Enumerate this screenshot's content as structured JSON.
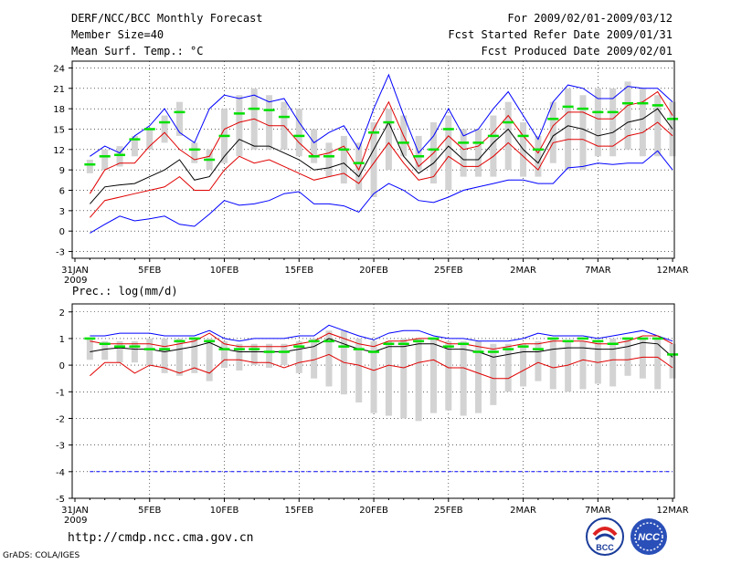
{
  "header": {
    "title": "DERF/NCC/BCC Monthly Forecast",
    "member_size": "Member Size=40",
    "variable": "Mean Surf. Temp.: °C",
    "period": "For 2009/02/01-2009/03/12",
    "started": "Fcst Started Refer Date 2009/01/31",
    "produced": "Fcst Produced Date 2009/02/01"
  },
  "footer": {
    "url": "http://cmdp.ncc.cma.gov.cn",
    "grads": "GrADS: COLA/IGES",
    "logo_bcc": "BCC",
    "logo_ncc": "NCC"
  },
  "colors": {
    "bar": "#d3d3d3",
    "median": "#00e000",
    "max": "#0000ff",
    "pctl": "#e00000",
    "mean": "#000000",
    "grid": "#000000"
  },
  "chart_data": [
    {
      "type": "line",
      "title": "",
      "ylabel": "Mean Surf. Temp.: °C",
      "ylim": [
        -4,
        25
      ],
      "yticks": [
        "-3",
        "0",
        "3",
        "6",
        "9",
        "12",
        "15",
        "18",
        "21",
        "24"
      ],
      "ytick_values": [
        -3,
        0,
        3,
        6,
        9,
        12,
        15,
        18,
        21,
        24
      ],
      "xticks": [
        "31JAN",
        "5FEB",
        "10FEB",
        "15FEB",
        "20FEB",
        "25FEB",
        "2MAR",
        "7MAR",
        "12MAR"
      ],
      "xtick_days": [
        0,
        5,
        10,
        15,
        20,
        25,
        30,
        35,
        40
      ],
      "xyear": "2009",
      "days": [
        1,
        2,
        3,
        4,
        5,
        6,
        7,
        8,
        9,
        10,
        11,
        12,
        13,
        14,
        15,
        16,
        17,
        18,
        19,
        20,
        21,
        22,
        23,
        24,
        25,
        26,
        27,
        28,
        29,
        30,
        31,
        32,
        33,
        34,
        35,
        36,
        37,
        38,
        39,
        40
      ],
      "bars": {
        "low": [
          8.5,
          9,
          9.5,
          11,
          12,
          13,
          14,
          10,
          9,
          10,
          11,
          12,
          12,
          12,
          11,
          10,
          8,
          7,
          6,
          5,
          9,
          11,
          9,
          7,
          6,
          8,
          8,
          8,
          9,
          8,
          8,
          10,
          9,
          9,
          11,
          11,
          12,
          11,
          11,
          11
        ],
        "high": [
          10.5,
          12,
          12.5,
          14,
          15,
          17,
          19,
          13,
          12,
          18,
          20,
          21,
          20,
          19,
          18,
          15,
          13,
          14,
          13,
          16,
          18,
          17,
          14,
          16,
          17,
          15,
          15,
          17,
          19,
          16,
          14,
          19,
          21,
          20,
          21,
          21,
          22,
          21,
          20,
          19
        ]
      },
      "series": [
        {
          "name": "median",
          "values": [
            9.8,
            11,
            11.2,
            13.5,
            15,
            16,
            17.5,
            12,
            10.5,
            14,
            17.3,
            18,
            17.8,
            16.8,
            14,
            11,
            11,
            12,
            10,
            14.5,
            16,
            13,
            11,
            12,
            15,
            13,
            13,
            14,
            16,
            14,
            12,
            16.5,
            18.3,
            18,
            17.5,
            17.5,
            18.8,
            18.8,
            18.5,
            16.5
          ]
        },
        {
          "name": "max",
          "values": [
            11,
            12.5,
            11.5,
            14,
            15.5,
            18,
            14.5,
            13,
            18,
            20,
            19.5,
            20,
            19,
            19.5,
            16,
            13,
            14.5,
            15.5,
            12,
            18,
            23,
            17,
            11.5,
            14,
            18,
            14,
            15,
            18,
            20.5,
            17,
            13.5,
            19,
            21.5,
            21,
            19.5,
            19.5,
            21.3,
            21,
            21,
            19
          ]
        },
        {
          "name": "upper",
          "values": [
            5.5,
            9,
            10,
            10,
            12.5,
            14.5,
            12,
            10.5,
            11,
            15,
            16,
            16.5,
            15.5,
            15.5,
            13,
            11,
            11.5,
            12.5,
            9,
            15,
            19,
            14,
            9.5,
            11.5,
            14,
            12,
            12.5,
            14.5,
            17,
            14,
            11.5,
            15.5,
            17.5,
            17.5,
            16.5,
            16.5,
            18.5,
            19,
            20.5,
            17
          ]
        },
        {
          "name": "mean",
          "values": [
            4,
            6.5,
            6.8,
            7,
            8,
            9,
            10.5,
            7.5,
            8,
            11,
            13.5,
            12.5,
            12.5,
            11.5,
            10.5,
            9,
            9.3,
            10,
            8,
            12,
            16,
            11,
            8.5,
            10,
            12.5,
            10.5,
            10.5,
            13,
            15,
            12,
            10,
            14,
            15.5,
            15,
            14,
            14.5,
            16,
            16.5,
            18,
            15
          ]
        },
        {
          "name": "lower",
          "values": [
            2,
            4.5,
            5,
            5.5,
            6,
            6.5,
            8,
            6,
            6,
            9,
            11,
            10,
            10.5,
            9.5,
            8.5,
            7.5,
            8,
            8.5,
            7,
            10,
            13,
            10,
            7.5,
            8,
            11,
            9.5,
            9.5,
            11,
            13,
            11,
            9,
            13,
            13.5,
            13.5,
            12.5,
            12.5,
            14,
            14.5,
            16,
            14
          ]
        },
        {
          "name": "min",
          "values": [
            -0.3,
            1,
            2.2,
            1.5,
            1.8,
            2.2,
            1,
            0.7,
            2.5,
            4.5,
            3.8,
            4,
            4.5,
            5.5,
            5.8,
            4,
            4,
            3.7,
            2.8,
            5.5,
            7,
            6,
            4.5,
            4.2,
            5,
            6,
            6.5,
            7,
            7.5,
            7.5,
            7,
            7,
            9.3,
            9.5,
            10,
            9.8,
            10,
            10,
            11.8,
            9
          ]
        }
      ]
    },
    {
      "type": "line",
      "title": "Prec.: log(mm/d)",
      "ylabel": "Prec.: log(mm/d)",
      "ylim": [
        -5,
        2.3
      ],
      "yticks": [
        "-5",
        "-4",
        "-3",
        "-2",
        "-1",
        "0",
        "1",
        "2"
      ],
      "ytick_values": [
        -5,
        -4,
        -3,
        -2,
        -1,
        0,
        1,
        2
      ],
      "xticks": [
        "31JAN",
        "5FEB",
        "10FEB",
        "15FEB",
        "20FEB",
        "25FEB",
        "2MAR",
        "7MAR",
        "12MAR"
      ],
      "xtick_days": [
        0,
        5,
        10,
        15,
        20,
        25,
        30,
        35,
        40
      ],
      "xyear": "2009",
      "days": [
        1,
        2,
        3,
        4,
        5,
        6,
        7,
        8,
        9,
        10,
        11,
        12,
        13,
        14,
        15,
        16,
        17,
        18,
        19,
        20,
        21,
        22,
        23,
        24,
        25,
        26,
        27,
        28,
        29,
        30,
        31,
        32,
        33,
        34,
        35,
        36,
        37,
        38,
        39,
        40
      ],
      "bars": {
        "low": [
          0.2,
          0.2,
          0.1,
          0.1,
          0,
          -0.3,
          -0.4,
          -0.3,
          -0.6,
          -0.1,
          -0.2,
          0,
          -0.1,
          0,
          -0.3,
          -0.5,
          -0.8,
          -1.1,
          -1.4,
          -1.8,
          -1.9,
          -2,
          -2.1,
          -1.8,
          -1.7,
          -1.9,
          -1.8,
          -1.5,
          -1,
          -0.8,
          -0.6,
          -0.9,
          -1,
          -0.9,
          -0.7,
          -0.8,
          -0.4,
          -0.5,
          -0.9,
          -0.5
        ],
        "high": [
          1,
          0.9,
          0.9,
          0.9,
          1,
          1,
          1,
          1,
          1,
          0.9,
          0.8,
          0.8,
          0.8,
          0.8,
          0.9,
          1,
          1.3,
          1.3,
          1,
          0.9,
          0.9,
          1,
          1,
          1,
          0.9,
          0.9,
          0.9,
          0.8,
          0.8,
          0.8,
          0.9,
          1,
          0.9,
          0.9,
          0.9,
          1,
          1,
          1,
          1,
          0.8
        ]
      },
      "series": [
        {
          "name": "median",
          "values": [
            1,
            0.8,
            0.7,
            0.7,
            0.6,
            0.6,
            0.9,
            1,
            0.9,
            0.6,
            0.6,
            0.6,
            0.5,
            0.5,
            0.7,
            0.9,
            0.9,
            0.7,
            0.6,
            0.5,
            0.8,
            0.8,
            0.9,
            1,
            0.7,
            0.8,
            0.5,
            0.5,
            0.6,
            0.7,
            0.6,
            1,
            0.9,
            1,
            0.9,
            0.8,
            1,
            1,
            1,
            0.4
          ]
        },
        {
          "name": "max",
          "values": [
            1.1,
            1.1,
            1.2,
            1.2,
            1.2,
            1.1,
            1.1,
            1.1,
            1.3,
            1,
            0.9,
            1,
            1,
            1,
            1.1,
            1.1,
            1.5,
            1.3,
            1.1,
            0.95,
            1.2,
            1.3,
            1.3,
            1.1,
            1,
            1,
            0.9,
            0.9,
            0.9,
            1,
            1.2,
            1.1,
            1.1,
            1.1,
            1,
            1.1,
            1.2,
            1.3,
            1.1,
            0.9
          ]
        },
        {
          "name": "upper",
          "values": [
            0.9,
            0.8,
            0.8,
            0.8,
            0.8,
            0.7,
            0.8,
            0.9,
            1.2,
            0.8,
            0.7,
            0.7,
            0.7,
            0.7,
            0.8,
            0.9,
            1.2,
            1,
            0.8,
            0.7,
            0.9,
            0.9,
            1,
            1,
            0.8,
            0.8,
            0.7,
            0.6,
            0.7,
            0.8,
            0.8,
            0.9,
            0.9,
            0.9,
            0.8,
            0.8,
            0.9,
            1.1,
            1.1,
            0.8
          ]
        },
        {
          "name": "mean",
          "values": [
            0.5,
            0.6,
            0.65,
            0.6,
            0.6,
            0.5,
            0.6,
            0.7,
            0.85,
            0.6,
            0.5,
            0.5,
            0.5,
            0.5,
            0.6,
            0.7,
            1,
            0.8,
            0.6,
            0.5,
            0.7,
            0.7,
            0.8,
            0.8,
            0.6,
            0.6,
            0.5,
            0.3,
            0.4,
            0.5,
            0.5,
            0.6,
            0.65,
            0.65,
            0.6,
            0.6,
            0.7,
            0.85,
            0.8,
            0.3
          ]
        },
        {
          "name": "lower",
          "values": [
            -0.4,
            0.1,
            0.1,
            -0.3,
            0,
            -0.1,
            -0.3,
            -0.1,
            -0.3,
            0.2,
            0.2,
            0.1,
            0.1,
            -0.1,
            0.1,
            0.2,
            0.4,
            0.1,
            0,
            -0.2,
            0,
            -0.1,
            0.1,
            0.2,
            -0.1,
            -0.1,
            -0.3,
            -0.5,
            -0.5,
            -0.2,
            0.1,
            -0.1,
            0,
            0.2,
            0.1,
            0.2,
            0.2,
            0.3,
            0.3,
            -0.1
          ]
        },
        {
          "name": "min",
          "values": [
            -4,
            -4,
            -4,
            -4,
            -4,
            -4,
            -4,
            -4,
            -4,
            -4,
            -4,
            -4,
            -4,
            -4,
            -4,
            -4,
            -4,
            -4,
            -4,
            -4,
            -4,
            -4,
            -4,
            -4,
            -4,
            -4,
            -4,
            -4,
            -4,
            -4,
            -4,
            -4,
            -4,
            -4,
            -4,
            -4,
            -4,
            -4,
            -4,
            -4
          ]
        }
      ]
    }
  ]
}
